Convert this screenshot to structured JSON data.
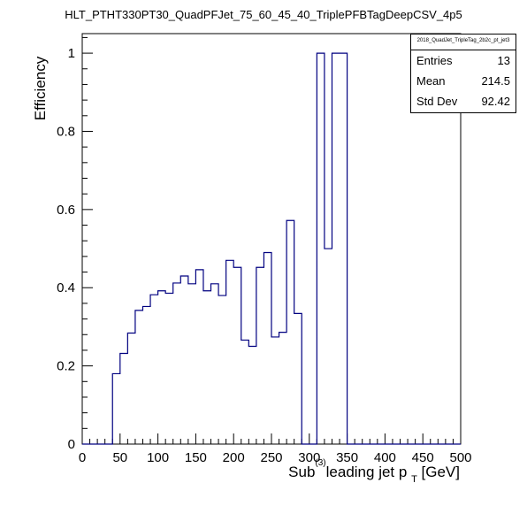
{
  "title": "HLT_PTHT330PT30_QuadPFJet_75_60_45_40_TriplePFBTagDeepCSV_4p5",
  "stats": {
    "name": "2018_QuadJet_TripleTag_2b2c_pt_jet3",
    "entries_label": "Entries",
    "entries": "13",
    "mean_label": "Mean",
    "mean": "214.5",
    "stddev_label": "Std Dev",
    "stddev": "92.42"
  },
  "chart_data": {
    "type": "histogram-step",
    "ylabel": "Efficiency",
    "xlabel_parts": {
      "pre": "Sub",
      "sup": "(3)",
      "mid": "leading jet p",
      "sub": "T",
      "post": "[GeV]"
    },
    "xlim": [
      0,
      500
    ],
    "ylim": [
      0,
      1.05
    ],
    "x_ticks": [
      0,
      50,
      100,
      150,
      200,
      250,
      300,
      350,
      400,
      450,
      500
    ],
    "y_ticks": [
      "0",
      "0.2",
      "0.4",
      "0.6",
      "0.8",
      "1"
    ],
    "y_tick_values": [
      0,
      0.2,
      0.4,
      0.6,
      0.8,
      1.0
    ],
    "bin_width": 10,
    "bins_x_low": [
      0,
      10,
      20,
      30,
      40,
      50,
      60,
      70,
      80,
      90,
      100,
      110,
      120,
      130,
      140,
      150,
      160,
      170,
      180,
      190,
      200,
      210,
      220,
      230,
      240,
      250,
      260,
      270,
      280,
      290,
      300,
      310,
      320,
      330,
      340,
      350,
      360,
      370,
      380,
      390,
      400,
      410,
      420,
      430,
      440,
      450,
      460,
      470,
      480,
      490
    ],
    "values": [
      0,
      0,
      0,
      0,
      0.18,
      0.232,
      0.284,
      0.342,
      0.352,
      0.382,
      0.392,
      0.386,
      0.412,
      0.43,
      0.41,
      0.446,
      0.392,
      0.41,
      0.38,
      0.47,
      0.452,
      0.266,
      0.25,
      0.452,
      0.49,
      0.274,
      0.286,
      0.572,
      0.334,
      0,
      0,
      1.0,
      0.5,
      1.0,
      1.0,
      0,
      0,
      0,
      0,
      0,
      0,
      0,
      0,
      0,
      0,
      0,
      0,
      0,
      0,
      0
    ],
    "line_color": "#000080"
  }
}
